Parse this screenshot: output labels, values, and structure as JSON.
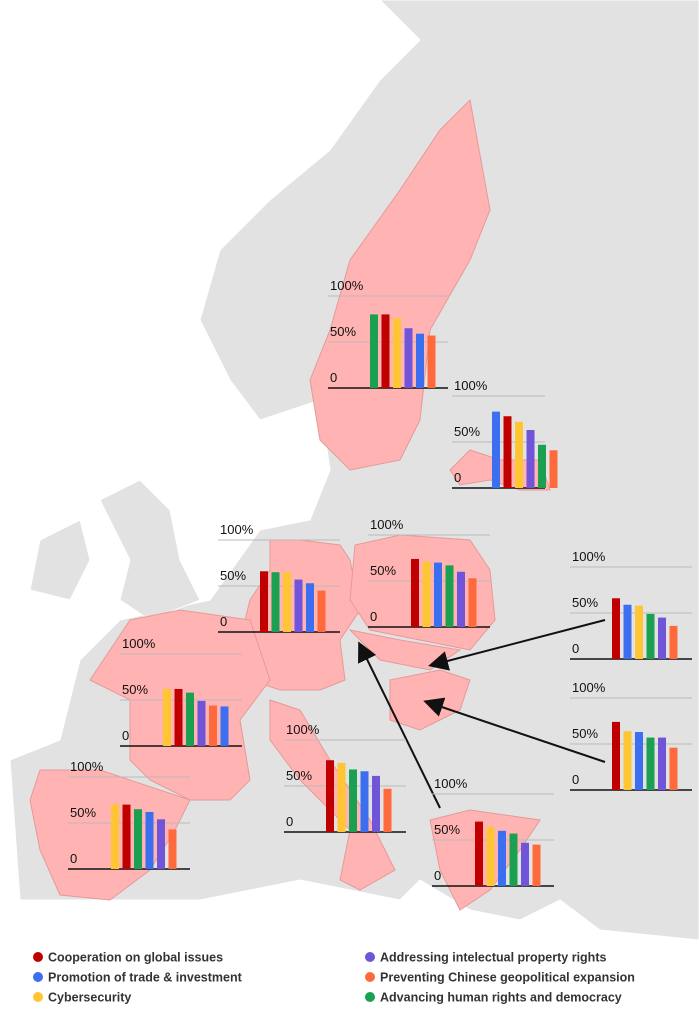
{
  "legend": [
    {
      "name": "Cooperation on global issues",
      "color": "#c00000"
    },
    {
      "name": "Promotion of trade & investment",
      "color": "#3b6ff0"
    },
    {
      "name": "Cybersecurity",
      "color": "#ffc533"
    },
    {
      "name": "Addressing intelectual property rights",
      "color": "#7055d9"
    },
    {
      "name": "Preventing Chinese geopolitical expansion",
      "color": "#ff6a3d"
    },
    {
      "name": "Advancing human rights and democracy",
      "color": "#1aa050"
    }
  ],
  "chart_data": [
    {
      "type": "bar",
      "colors": [
        "#1aa050",
        "#c00000",
        "#ffc533",
        "#7055d9",
        "#3b6ff0",
        "#ff6a3d"
      ],
      "values": [
        80,
        80,
        76,
        65,
        59,
        57
      ],
      "ylim": [
        0,
        100
      ],
      "yticks": [
        0,
        {
          "value": 50,
          "label": "50%"
        },
        {
          "value": 100,
          "label": "100%"
        }
      ]
    },
    {
      "type": "bar",
      "colors": [
        "#3b6ff0",
        "#c00000",
        "#ffc533",
        "#7055d9",
        "#1aa050",
        "#ff6a3d"
      ],
      "values": [
        83,
        78,
        72,
        63,
        47,
        41
      ],
      "ylim": [
        0,
        100
      ],
      "yticks": [
        0,
        {
          "value": 50,
          "label": "50%"
        },
        {
          "value": 100,
          "label": "100%"
        }
      ]
    },
    {
      "type": "bar",
      "colors": [
        "#c00000",
        "#1aa050",
        "#ffc533",
        "#7055d9",
        "#3b6ff0",
        "#ff6a3d"
      ],
      "values": [
        66,
        65,
        65,
        57,
        53,
        45
      ],
      "ylim": [
        0,
        100
      ],
      "yticks": [
        0,
        {
          "value": 50,
          "label": "50%"
        },
        {
          "value": 100,
          "label": "100%"
        }
      ]
    },
    {
      "type": "bar",
      "colors": [
        "#c00000",
        "#ffc533",
        "#3b6ff0",
        "#1aa050",
        "#7055d9",
        "#ff6a3d"
      ],
      "values": [
        74,
        71,
        70,
        67,
        60,
        53
      ],
      "ylim": [
        0,
        100
      ],
      "yticks": [
        0,
        {
          "value": 50,
          "label": "50%"
        },
        {
          "value": 100,
          "label": "100%"
        }
      ]
    },
    {
      "type": "bar",
      "colors": [
        "#c00000",
        "#3b6ff0",
        "#ffc533",
        "#1aa050",
        "#7055d9",
        "#ff6a3d"
      ],
      "values": [
        66,
        59,
        58,
        49,
        45,
        36
      ],
      "ylim": [
        0,
        100
      ],
      "yticks": [
        0,
        {
          "value": 50,
          "label": "50%"
        },
        {
          "value": 100,
          "label": "100%"
        }
      ]
    },
    {
      "type": "bar",
      "colors": [
        "#ffc533",
        "#c00000",
        "#1aa050",
        "#7055d9",
        "#ff6a3d",
        "#3b6ff0"
      ],
      "values": [
        62,
        62,
        58,
        49,
        44,
        43
      ],
      "ylim": [
        0,
        100
      ],
      "yticks": [
        0,
        {
          "value": 50,
          "label": "50%"
        },
        {
          "value": 100,
          "label": "100%"
        }
      ]
    },
    {
      "type": "bar",
      "colors": [
        "#c00000",
        "#ffc533",
        "#3b6ff0",
        "#1aa050",
        "#7055d9",
        "#ff6a3d"
      ],
      "values": [
        74,
        64,
        63,
        57,
        57,
        46
      ],
      "ylim": [
        0,
        100
      ],
      "yticks": [
        0,
        {
          "value": 50,
          "label": "50%"
        },
        {
          "value": 100,
          "label": "100%"
        }
      ]
    },
    {
      "type": "bar",
      "colors": [
        "#c00000",
        "#ffc533",
        "#1aa050",
        "#3b6ff0",
        "#7055d9",
        "#ff6a3d"
      ],
      "values": [
        78,
        75,
        68,
        66,
        61,
        47
      ],
      "ylim": [
        0,
        100
      ],
      "yticks": [
        0,
        {
          "value": 50,
          "label": "50%"
        },
        {
          "value": 100,
          "label": "100%"
        }
      ]
    },
    {
      "type": "bar",
      "colors": [
        "#ffc533",
        "#c00000",
        "#1aa050",
        "#3b6ff0",
        "#7055d9",
        "#ff6a3d"
      ],
      "values": [
        70,
        70,
        65,
        62,
        54,
        43
      ],
      "ylim": [
        0,
        100
      ],
      "yticks": [
        0,
        {
          "value": 50,
          "label": "50%"
        },
        {
          "value": 100,
          "label": "100%"
        }
      ]
    },
    {
      "type": "bar",
      "colors": [
        "#c00000",
        "#ffc533",
        "#3b6ff0",
        "#1aa050",
        "#7055d9",
        "#ff6a3d"
      ],
      "values": [
        70,
        64,
        60,
        57,
        47,
        45
      ],
      "ylim": [
        0,
        100
      ],
      "yticks": [
        0,
        {
          "value": 50,
          "label": "50%"
        },
        {
          "value": 100,
          "label": "100%"
        }
      ]
    }
  ]
}
